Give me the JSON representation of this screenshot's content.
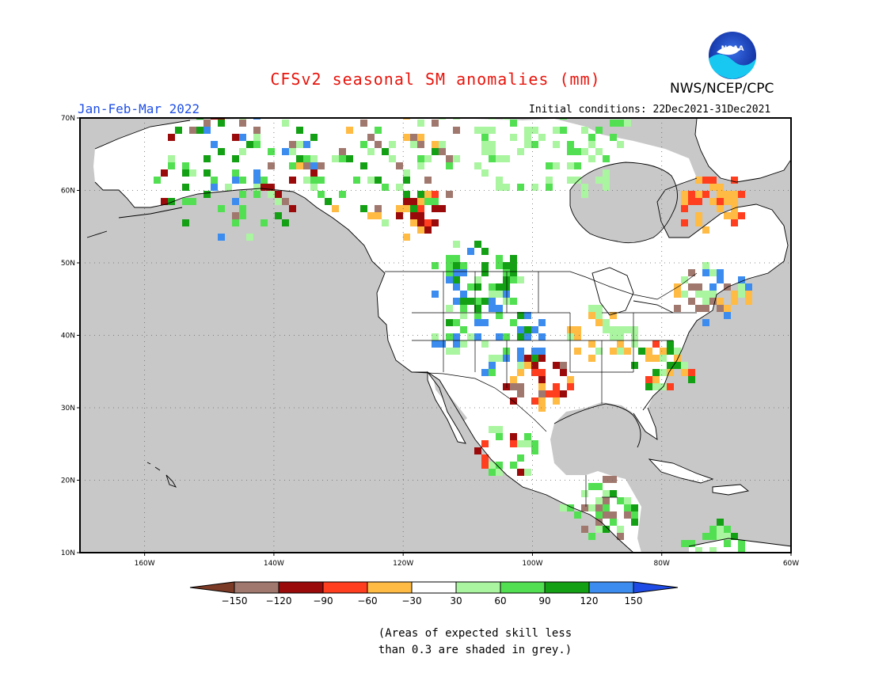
{
  "header": {
    "title": "CFSv2 seasonal SM anomalies (mm)",
    "agency": "NWS/NCEP/CPC",
    "period": "Jan-Feb-Mar 2022",
    "initial_conditions": "Initial conditions: 22Dec2021-31Dec2021"
  },
  "logo": {
    "text": "NOAA"
  },
  "map": {
    "lat_labels": [
      "70N",
      "60N",
      "50N",
      "40N",
      "30N",
      "20N",
      "10N"
    ],
    "lon_labels": [
      "160W",
      "140W",
      "120W",
      "100W",
      "80W",
      "60W"
    ],
    "lat_range": [
      10,
      70
    ],
    "lon_range": [
      -170,
      -60
    ],
    "masked_color": "#c8c8c8",
    "coastline_color": "#000000"
  },
  "colorbar": {
    "labels": [
      "−150",
      "−120",
      "−90",
      "−60",
      "−30",
      "30",
      "60",
      "90",
      "120",
      "150"
    ],
    "colors": [
      "#7b3a25",
      "#a0786e",
      "#9b0a0a",
      "#ff3d1f",
      "#ffbb44",
      "#ffffff",
      "#aaf5a0",
      "#52e052",
      "#14a014",
      "#3c8cf0",
      "#1e4be6"
    ]
  },
  "note": {
    "line1": "(Areas of expected skill less",
    "line2": "than 0.3 are shaded in grey.)"
  }
}
